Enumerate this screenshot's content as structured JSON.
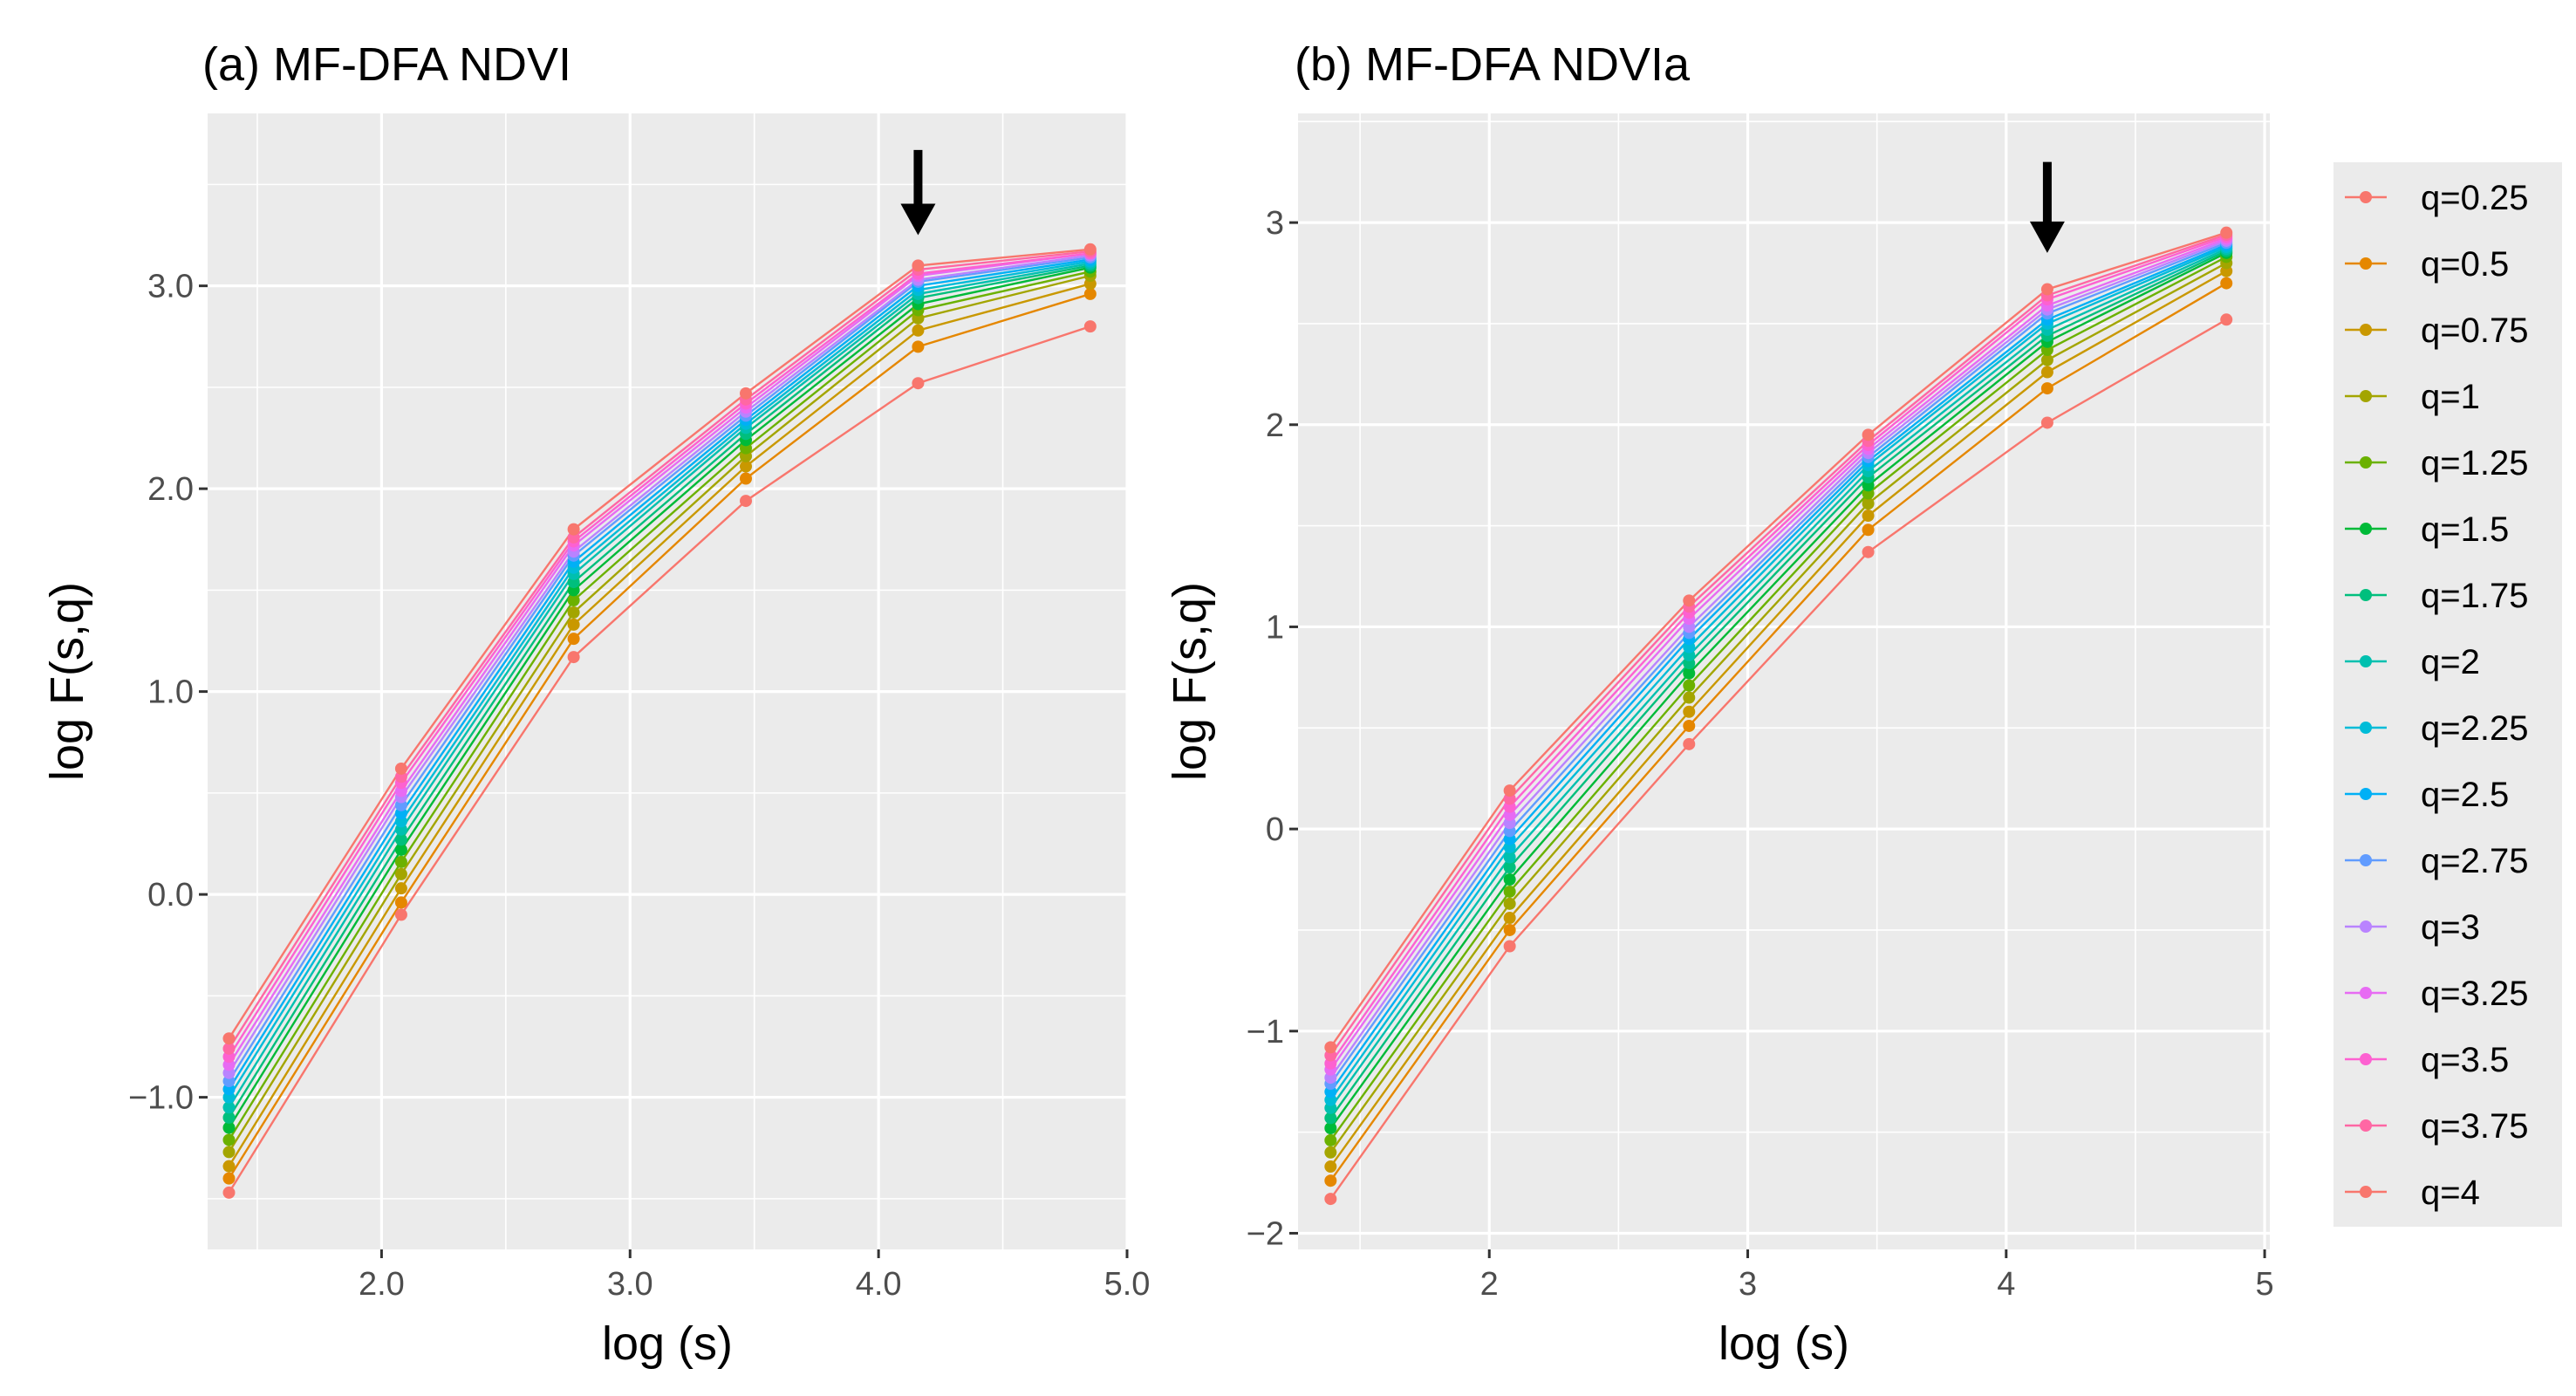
{
  "chart_data": [
    {
      "type": "line",
      "title": "(a) MF-DFA NDVI",
      "xlabel": "log (s)",
      "ylabel": "log F(s,q)",
      "x": [
        1.386,
        2.079,
        2.773,
        3.466,
        4.159,
        4.852
      ],
      "xlim": [
        1.3,
        5.0
      ],
      "ylim": [
        -1.75,
        3.85
      ],
      "xticks": [
        2.0,
        3.0,
        4.0,
        5.0
      ],
      "xtick_labels": [
        "2.0",
        "3.0",
        "4.0",
        "5.0"
      ],
      "yticks": [
        -1.0,
        0.0,
        1.0,
        2.0,
        3.0
      ],
      "ytick_labels": [
        "−1.0",
        "0.0",
        "1.0",
        "2.0",
        "3.0"
      ],
      "grid": true,
      "annotation": {
        "type": "arrow",
        "x": 4.159,
        "y_from": 3.67,
        "y_to": 3.25
      },
      "series": [
        {
          "name": "q=0.25",
          "values": [
            -1.47,
            -0.1,
            1.17,
            1.94,
            2.52,
            2.8
          ]
        },
        {
          "name": "q=0.5",
          "values": [
            -1.4,
            -0.04,
            1.26,
            2.05,
            2.7,
            2.96
          ]
        },
        {
          "name": "q=0.75",
          "values": [
            -1.34,
            0.03,
            1.33,
            2.11,
            2.78,
            3.01
          ]
        },
        {
          "name": "q=1",
          "values": [
            -1.27,
            0.1,
            1.39,
            2.16,
            2.84,
            3.05
          ]
        },
        {
          "name": "q=1.25",
          "values": [
            -1.21,
            0.16,
            1.45,
            2.2,
            2.88,
            3.07
          ]
        },
        {
          "name": "q=1.5",
          "values": [
            -1.15,
            0.22,
            1.5,
            2.24,
            2.91,
            3.09
          ]
        },
        {
          "name": "q=1.75",
          "values": [
            -1.1,
            0.27,
            1.54,
            2.27,
            2.94,
            3.1
          ]
        },
        {
          "name": "q=2",
          "values": [
            -1.05,
            0.32,
            1.58,
            2.3,
            2.96,
            3.11
          ]
        },
        {
          "name": "q=2.25",
          "values": [
            -1.0,
            0.36,
            1.61,
            2.32,
            2.98,
            3.12
          ]
        },
        {
          "name": "q=2.5",
          "values": [
            -0.96,
            0.4,
            1.64,
            2.34,
            3.0,
            3.13
          ]
        },
        {
          "name": "q=2.75",
          "values": [
            -0.92,
            0.44,
            1.67,
            2.36,
            3.02,
            3.14
          ]
        },
        {
          "name": "q=3",
          "values": [
            -0.88,
            0.48,
            1.69,
            2.38,
            3.03,
            3.15
          ]
        },
        {
          "name": "q=3.25",
          "values": [
            -0.84,
            0.51,
            1.72,
            2.4,
            3.05,
            3.16
          ]
        },
        {
          "name": "q=3.5",
          "values": [
            -0.8,
            0.55,
            1.74,
            2.42,
            3.06,
            3.16
          ]
        },
        {
          "name": "q=3.75",
          "values": [
            -0.76,
            0.58,
            1.76,
            2.44,
            3.08,
            3.17
          ]
        },
        {
          "name": "q=4",
          "values": [
            -0.71,
            0.62,
            1.8,
            2.47,
            3.1,
            3.18
          ]
        }
      ]
    },
    {
      "type": "line",
      "title": "(b) MF-DFA NDVIa",
      "xlabel": "log (s)",
      "ylabel": "log F(s,q)",
      "x": [
        1.386,
        2.079,
        2.773,
        3.466,
        4.159,
        4.852
      ],
      "xlim": [
        1.26,
        5.02
      ],
      "ylim": [
        -2.08,
        3.54
      ],
      "xticks": [
        2,
        3,
        4,
        5
      ],
      "xtick_labels": [
        "2",
        "3",
        "4",
        "5"
      ],
      "yticks": [
        -2,
        -1,
        0,
        1,
        2,
        3
      ],
      "ytick_labels": [
        "−2",
        "−1",
        "0",
        "1",
        "2",
        "3"
      ],
      "grid": true,
      "annotation": {
        "type": "arrow",
        "x": 4.159,
        "y_from": 3.3,
        "y_to": 2.85
      },
      "series": [
        {
          "name": "q=0.25",
          "values": [
            -1.83,
            -0.58,
            0.42,
            1.37,
            2.01,
            2.52
          ]
        },
        {
          "name": "q=0.5",
          "values": [
            -1.74,
            -0.5,
            0.51,
            1.48,
            2.18,
            2.7
          ]
        },
        {
          "name": "q=0.75",
          "values": [
            -1.67,
            -0.44,
            0.58,
            1.55,
            2.26,
            2.76
          ]
        },
        {
          "name": "q=1",
          "values": [
            -1.6,
            -0.37,
            0.65,
            1.61,
            2.32,
            2.8
          ]
        },
        {
          "name": "q=1.25",
          "values": [
            -1.54,
            -0.31,
            0.71,
            1.66,
            2.37,
            2.83
          ]
        },
        {
          "name": "q=1.5",
          "values": [
            -1.48,
            -0.25,
            0.77,
            1.7,
            2.41,
            2.85
          ]
        },
        {
          "name": "q=1.75",
          "values": [
            -1.43,
            -0.19,
            0.82,
            1.74,
            2.44,
            2.86
          ]
        },
        {
          "name": "q=2",
          "values": [
            -1.38,
            -0.14,
            0.86,
            1.77,
            2.47,
            2.87
          ]
        },
        {
          "name": "q=2.25",
          "values": [
            -1.34,
            -0.09,
            0.9,
            1.8,
            2.5,
            2.88
          ]
        },
        {
          "name": "q=2.5",
          "values": [
            -1.3,
            -0.05,
            0.94,
            1.82,
            2.52,
            2.89
          ]
        },
        {
          "name": "q=2.75",
          "values": [
            -1.26,
            -0.01,
            0.97,
            1.84,
            2.55,
            2.9
          ]
        },
        {
          "name": "q=3",
          "values": [
            -1.23,
            0.03,
            1.0,
            1.86,
            2.57,
            2.91
          ]
        },
        {
          "name": "q=3.25",
          "values": [
            -1.19,
            0.07,
            1.04,
            1.88,
            2.59,
            2.92
          ]
        },
        {
          "name": "q=3.5",
          "values": [
            -1.16,
            0.11,
            1.07,
            1.9,
            2.62,
            2.93
          ]
        },
        {
          "name": "q=3.75",
          "values": [
            -1.12,
            0.15,
            1.1,
            1.92,
            2.64,
            2.94
          ]
        },
        {
          "name": "q=4",
          "values": [
            -1.08,
            0.19,
            1.13,
            1.95,
            2.67,
            2.95
          ]
        }
      ]
    }
  ],
  "legend": {
    "placement": "right",
    "entries": [
      "q=0.25",
      "q=0.5",
      "q=0.75",
      "q=1",
      "q=1.25",
      "q=1.5",
      "q=1.75",
      "q=2",
      "q=2.25",
      "q=2.5",
      "q=2.75",
      "q=3",
      "q=3.25",
      "q=3.5",
      "q=3.75",
      "q=4"
    ],
    "colors": [
      "#F8766D",
      "#E58700",
      "#C99800",
      "#A3A500",
      "#6BB100",
      "#00BA38",
      "#00BF7D",
      "#00C0AF",
      "#00BCD8",
      "#00B0F6",
      "#619CFF",
      "#B983FF",
      "#E76BF3",
      "#FD61D1",
      "#FF67A4",
      "#F8766D"
    ]
  },
  "panel_background": "#EBEBEB",
  "grid_color": "#FFFFFF"
}
